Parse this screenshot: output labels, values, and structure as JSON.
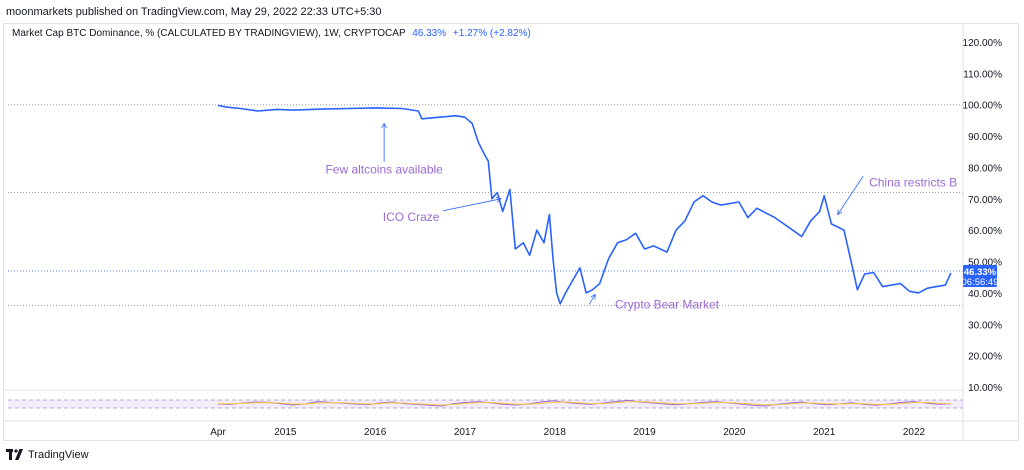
{
  "header": {
    "publisher_line": "moonmarkets published on TradingView.com, May 29, 2022 22:33 UTC+5:30"
  },
  "legend": {
    "symbol": "Market Cap BTC Dominance, % (CALCULATED BY TRADINGVIEW), 1W, CRYPTOCAP",
    "value": "46.33%",
    "change": "+1.27% (+2.82%)"
  },
  "price_label": {
    "value": "46.33%",
    "countdown": "06:56:49"
  },
  "footer": {
    "brand": "TradingView"
  },
  "colors": {
    "line": "#2962ff",
    "annotation": "#9c6ad6",
    "grid": "#b2b5be",
    "osc_yellow": "#f7c948",
    "osc_purple": "#9c6ad6"
  },
  "chart_data": {
    "type": "line",
    "title": "Market Cap BTC Dominance, % (CALCULATED BY TRADINGVIEW), 1W, CRYPTOCAP",
    "ylabel": "",
    "ylim": [
      5,
      125
    ],
    "y_ticks": [
      "120.00%",
      "110.00%",
      "100.00%",
      "90.00%",
      "80.00%",
      "70.00%",
      "60.00%",
      "50.00%",
      "40.00%",
      "30.00%",
      "20.00%",
      "10.00%"
    ],
    "y_tick_values": [
      120,
      110,
      100,
      90,
      80,
      70,
      60,
      50,
      40,
      30,
      20,
      10
    ],
    "x_ticks": [
      "Apr",
      "2015",
      "2016",
      "2017",
      "2018",
      "2019",
      "2020",
      "2021",
      "2022"
    ],
    "x_tick_values": [
      2014.25,
      2015.0,
      2016.0,
      2017.0,
      2018.0,
      2019.0,
      2020.0,
      2021.0,
      2022.0
    ],
    "dotted_levels": [
      100,
      72,
      47,
      36
    ],
    "series": [
      {
        "points": [
          [
            2014.25,
            99.8
          ],
          [
            2014.35,
            99.2
          ],
          [
            2014.5,
            98.8
          ],
          [
            2014.7,
            98.0
          ],
          [
            2014.9,
            98.5
          ],
          [
            2015.1,
            98.3
          ],
          [
            2015.4,
            98.6
          ],
          [
            2015.7,
            98.8
          ],
          [
            2016.0,
            99.0
          ],
          [
            2016.3,
            98.8
          ],
          [
            2016.48,
            98.0
          ],
          [
            2016.52,
            95.5
          ],
          [
            2016.7,
            96.0
          ],
          [
            2016.9,
            96.5
          ],
          [
            2017.0,
            96.0
          ],
          [
            2017.08,
            94.0
          ],
          [
            2017.15,
            88.0
          ],
          [
            2017.22,
            84.0
          ],
          [
            2017.26,
            82.0
          ],
          [
            2017.3,
            70.0
          ],
          [
            2017.36,
            72.0
          ],
          [
            2017.42,
            66.0
          ],
          [
            2017.5,
            73.0
          ],
          [
            2017.56,
            54.0
          ],
          [
            2017.65,
            56.0
          ],
          [
            2017.72,
            52.0
          ],
          [
            2017.8,
            60.0
          ],
          [
            2017.88,
            56.0
          ],
          [
            2017.94,
            65.0
          ],
          [
            2017.98,
            51.0
          ],
          [
            2018.02,
            40.0
          ],
          [
            2018.06,
            36.5
          ],
          [
            2018.12,
            40.0
          ],
          [
            2018.2,
            44.0
          ],
          [
            2018.28,
            48.0
          ],
          [
            2018.35,
            40.0
          ],
          [
            2018.42,
            41.0
          ],
          [
            2018.5,
            43.0
          ],
          [
            2018.6,
            51.0
          ],
          [
            2018.7,
            56.0
          ],
          [
            2018.8,
            57.0
          ],
          [
            2018.9,
            59.0
          ],
          [
            2019.0,
            54.0
          ],
          [
            2019.1,
            55.0
          ],
          [
            2019.25,
            53.0
          ],
          [
            2019.35,
            60.0
          ],
          [
            2019.45,
            63.0
          ],
          [
            2019.55,
            69.0
          ],
          [
            2019.65,
            71.0
          ],
          [
            2019.75,
            69.0
          ],
          [
            2019.85,
            68.0
          ],
          [
            2019.95,
            68.5
          ],
          [
            2020.05,
            69.0
          ],
          [
            2020.15,
            64.0
          ],
          [
            2020.25,
            67.0
          ],
          [
            2020.35,
            65.5
          ],
          [
            2020.45,
            64.0
          ],
          [
            2020.55,
            62.0
          ],
          [
            2020.65,
            60.0
          ],
          [
            2020.75,
            58.0
          ],
          [
            2020.85,
            63.0
          ],
          [
            2020.95,
            66.0
          ],
          [
            2021.0,
            71.0
          ],
          [
            2021.08,
            62.0
          ],
          [
            2021.15,
            61.0
          ],
          [
            2021.22,
            60.0
          ],
          [
            2021.3,
            50.0
          ],
          [
            2021.37,
            41.0
          ],
          [
            2021.45,
            46.0
          ],
          [
            2021.55,
            46.5
          ],
          [
            2021.65,
            42.0
          ],
          [
            2021.75,
            42.5
          ],
          [
            2021.85,
            43.0
          ],
          [
            2021.95,
            40.5
          ],
          [
            2022.05,
            40.0
          ],
          [
            2022.15,
            41.5
          ],
          [
            2022.25,
            42.0
          ],
          [
            2022.35,
            42.5
          ],
          [
            2022.41,
            46.33
          ]
        ]
      }
    ],
    "annotations": [
      {
        "text": "Few altcoins available",
        "x": 2016.1,
        "y": 78,
        "arrow_to": [
          2016.1,
          94
        ]
      },
      {
        "text": "ICO Craze",
        "x": 2016.4,
        "y": 63,
        "arrow_to": [
          2017.4,
          70
        ]
      },
      {
        "text": "Crypto Bear Market",
        "x": 2019.25,
        "y": 35,
        "arrow_to": [
          2018.45,
          39.5
        ]
      },
      {
        "text": "China restricts B",
        "x": 2021.5,
        "y": 74,
        "arrow_to": [
          2021.15,
          65
        ]
      }
    ],
    "oscillator": {
      "type": "line",
      "ylim": [
        0,
        100
      ],
      "band": [
        30,
        70
      ],
      "series": [
        {
          "color_key": "osc_purple",
          "values": [
            50,
            48,
            55,
            60,
            58,
            52,
            45,
            50,
            62,
            58,
            54,
            50,
            46,
            55,
            60,
            52,
            48,
            44,
            40,
            52,
            58,
            62,
            55,
            48,
            45,
            50,
            60,
            66,
            58,
            52,
            48,
            55,
            62,
            68,
            60,
            55,
            50,
            46,
            52,
            58,
            62,
            56,
            50,
            44,
            40,
            48,
            55,
            60,
            52,
            46,
            50,
            56,
            48,
            44,
            50,
            58,
            62,
            55,
            48,
            52
          ]
        },
        {
          "color_key": "osc_yellow",
          "values": [
            52,
            51,
            53,
            56,
            57,
            55,
            50,
            50,
            55,
            57,
            56,
            53,
            50,
            52,
            56,
            55,
            51,
            48,
            45,
            48,
            53,
            57,
            57,
            53,
            49,
            49,
            53,
            59,
            60,
            56,
            52,
            52,
            56,
            61,
            62,
            59,
            55,
            51,
            51,
            54,
            57,
            57,
            54,
            50,
            46,
            46,
            50,
            55,
            55,
            51,
            50,
            52,
            51,
            48,
            48,
            52,
            57,
            58,
            54,
            52
          ]
        }
      ]
    }
  }
}
